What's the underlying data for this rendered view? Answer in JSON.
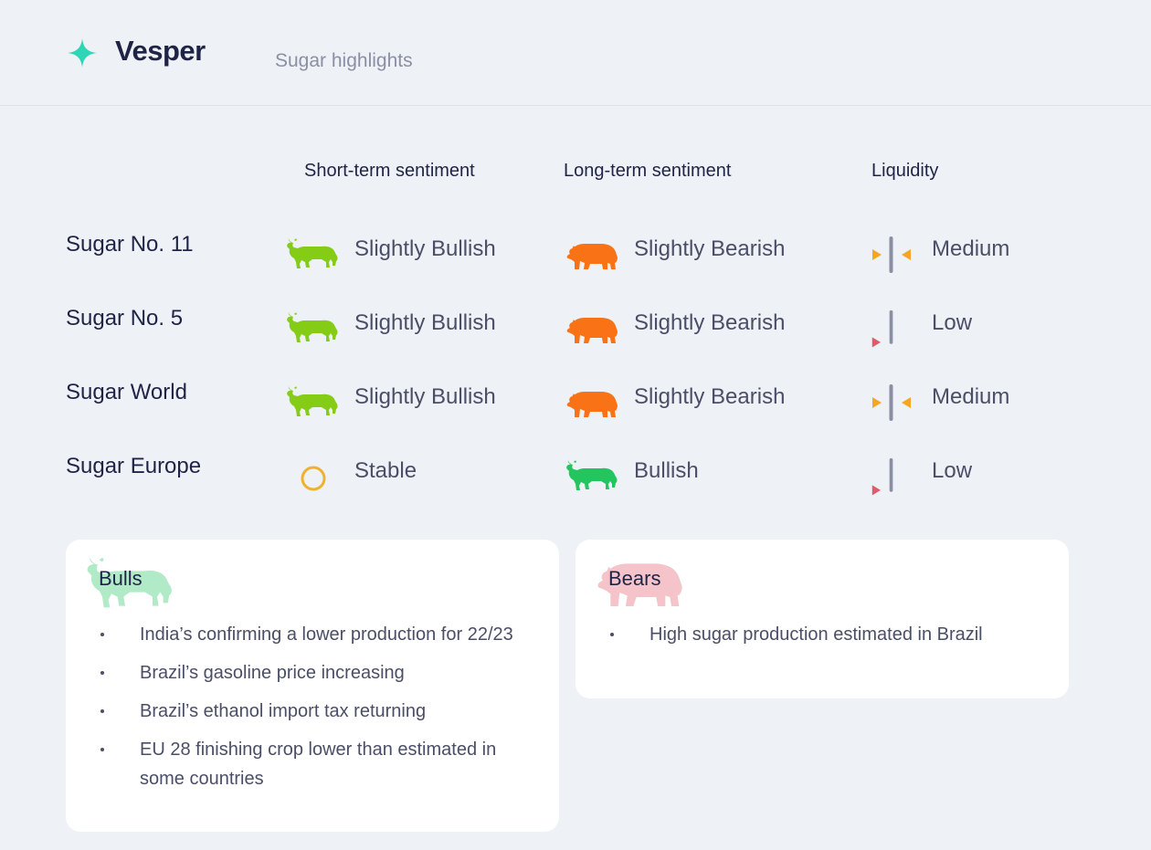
{
  "header": {
    "brand": "Vesper",
    "section_title": "Sugar highlights",
    "brand_color": "#2ed6b5"
  },
  "columns": {
    "short_term": "Short-term sentiment",
    "long_term": "Long-term sentiment",
    "liquidity": "Liquidity"
  },
  "rows": [
    {
      "name": "Sugar No. 11",
      "short_term": {
        "label": "Slightly Bullish",
        "icon": "bull-icon",
        "color": "#84cc16"
      },
      "long_term": {
        "label": "Slightly Bearish",
        "icon": "bear-icon",
        "color": "#f97316"
      },
      "liquidity": {
        "label": "Medium",
        "icon": "liquidity-medium-icon"
      }
    },
    {
      "name": "Sugar No. 5",
      "short_term": {
        "label": "Slightly Bullish",
        "icon": "bull-icon",
        "color": "#84cc16"
      },
      "long_term": {
        "label": "Slightly Bearish",
        "icon": "bear-icon",
        "color": "#f97316"
      },
      "liquidity": {
        "label": "Low",
        "icon": "liquidity-low-icon"
      }
    },
    {
      "name": "Sugar World",
      "short_term": {
        "label": "Slightly Bullish",
        "icon": "bull-icon",
        "color": "#84cc16"
      },
      "long_term": {
        "label": "Slightly Bearish",
        "icon": "bear-icon",
        "color": "#f97316"
      },
      "liquidity": {
        "label": "Medium",
        "icon": "liquidity-medium-icon"
      }
    },
    {
      "name": "Sugar Europe",
      "short_term": {
        "label": "Stable",
        "icon": "stable-circle-icon",
        "color": "#f0b030"
      },
      "long_term": {
        "label": "Bullish",
        "icon": "bull-icon",
        "color": "#22c55e"
      },
      "liquidity": {
        "label": "Low",
        "icon": "liquidity-low-icon"
      }
    }
  ],
  "bulls": {
    "title": "Bulls",
    "items": [
      "India’s confirming a lower production for 22/23",
      "Brazil’s gasoline price increasing",
      "Brazil’s ethanol import tax returning",
      "EU 28 finishing crop lower than estimated in some countries"
    ]
  },
  "bears": {
    "title": "Bears",
    "items": [
      "High sugar production estimated in Brazil"
    ]
  },
  "colors": {
    "liquidity_bar": "#8a8fa3",
    "liquidity_medium_arrow": "#f5a623",
    "liquidity_low_arrow": "#e05a6a"
  }
}
